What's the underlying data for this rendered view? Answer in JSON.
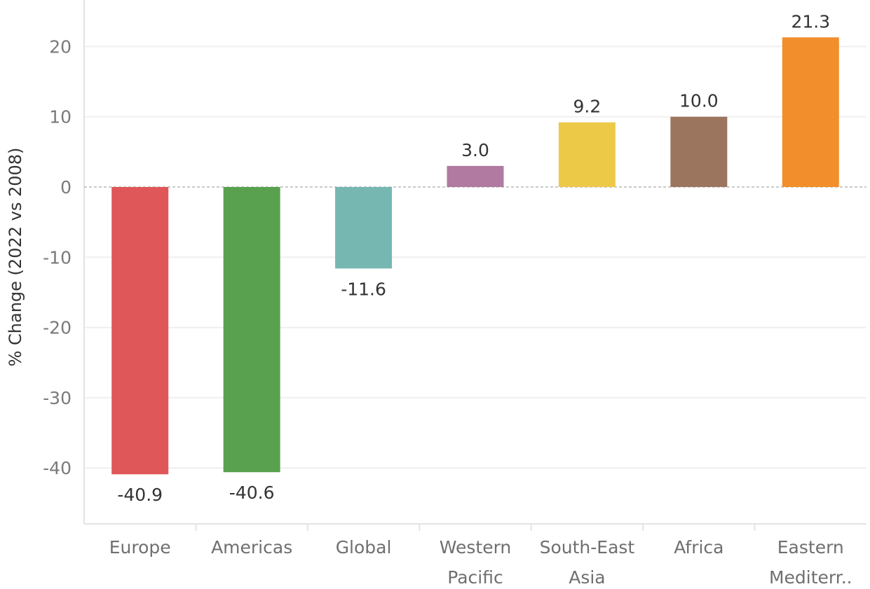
{
  "chart_data": {
    "type": "bar",
    "title": "",
    "xlabel": "",
    "ylabel": "% Change (2022 vs 2008)",
    "ylim": [
      -48,
      26
    ],
    "yticks": [
      20,
      10,
      0,
      -10,
      -20,
      -30,
      -40
    ],
    "ytick_labels": [
      "20",
      "10",
      "0",
      "-10",
      "-20",
      "-30",
      "-40"
    ],
    "grid": true,
    "legend": "none",
    "categories": [
      [
        "Europe"
      ],
      [
        "Americas"
      ],
      [
        "Global"
      ],
      [
        "Western",
        "Pacific"
      ],
      [
        "South-East",
        "Asia"
      ],
      [
        "Africa"
      ],
      [
        "Eastern",
        "Mediterr.."
      ]
    ],
    "values": [
      -40.9,
      -40.6,
      -11.6,
      3.0,
      9.2,
      10.0,
      21.3
    ],
    "value_labels": [
      "-40.9",
      "-40.6",
      "-11.6",
      "3.0",
      "9.2",
      "10.0",
      "21.3"
    ],
    "colors": [
      "#e05759",
      "#59a14f",
      "#76b7b2",
      "#b07aa1",
      "#edc948",
      "#9c755f",
      "#f28e2b"
    ]
  }
}
